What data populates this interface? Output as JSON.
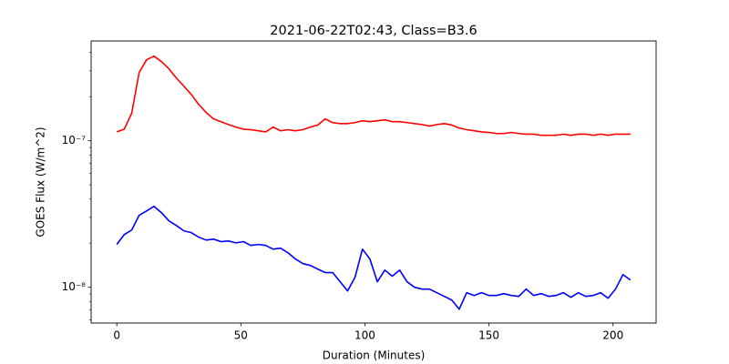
{
  "chart_data": {
    "type": "line",
    "title": "2021-06-22T02:43, Class=B3.6",
    "x_label": "Duration (Minutes)",
    "y_label": "GOES Flux (W/m^2)",
    "y_scale": "log",
    "grid": false,
    "xlim": [
      -10.35,
      217.35
    ],
    "ylim": [
      5.7e-09,
      4.8e-07
    ],
    "xticks": [
      0,
      50,
      100,
      150,
      200
    ],
    "yticks": [
      {
        "value": 1e-08,
        "label": "10⁻⁸"
      },
      {
        "value": 1e-07,
        "label": "10⁻⁷"
      }
    ],
    "yminorticks": [
      6e-09,
      7e-09,
      8e-09,
      9e-09,
      2e-08,
      3e-08,
      4e-08,
      5e-08,
      6e-08,
      7e-08,
      8e-08,
      9e-08,
      2e-07,
      3e-07,
      4e-07
    ],
    "x": [
      0,
      3,
      6,
      9,
      12,
      15,
      18,
      21,
      24,
      27,
      30,
      33,
      36,
      39,
      42,
      45,
      48,
      51,
      54,
      57,
      60,
      63,
      66,
      69,
      72,
      75,
      78,
      81,
      84,
      87,
      90,
      93,
      96,
      99,
      102,
      105,
      108,
      111,
      114,
      117,
      120,
      123,
      126,
      129,
      132,
      135,
      138,
      141,
      144,
      147,
      150,
      153,
      156,
      159,
      162,
      165,
      168,
      171,
      174,
      177,
      180,
      183,
      186,
      189,
      192,
      195,
      198,
      201,
      204,
      207
    ],
    "series": [
      {
        "color": "#ff0000",
        "values": [
          1.15e-07,
          1.2e-07,
          1.54e-07,
          2.92e-07,
          3.57e-07,
          3.78e-07,
          3.47e-07,
          3.1e-07,
          2.68e-07,
          2.36e-07,
          2.07e-07,
          1.77e-07,
          1.56e-07,
          1.41e-07,
          1.35e-07,
          1.29e-07,
          1.24e-07,
          1.2e-07,
          1.19e-07,
          1.17e-07,
          1.15e-07,
          1.24e-07,
          1.17e-07,
          1.19e-07,
          1.17e-07,
          1.19e-07,
          1.24e-07,
          1.28e-07,
          1.41e-07,
          1.33e-07,
          1.31e-07,
          1.31e-07,
          1.33e-07,
          1.37e-07,
          1.35e-07,
          1.37e-07,
          1.39e-07,
          1.35e-07,
          1.35e-07,
          1.33e-07,
          1.31e-07,
          1.29e-07,
          1.26e-07,
          1.29e-07,
          1.31e-07,
          1.28e-07,
          1.22e-07,
          1.19e-07,
          1.17e-07,
          1.15e-07,
          1.14e-07,
          1.12e-07,
          1.12e-07,
          1.14e-07,
          1.12e-07,
          1.11e-07,
          1.11e-07,
          1.09e-07,
          1.09e-07,
          1.09e-07,
          1.11e-07,
          1.09e-07,
          1.11e-07,
          1.11e-07,
          1.09e-07,
          1.11e-07,
          1.09e-07,
          1.11e-07,
          1.11e-07,
          1.11e-07
        ]
      },
      {
        "color": "#0000ff",
        "values": [
          1.96e-08,
          2.29e-08,
          2.46e-08,
          3.1e-08,
          3.32e-08,
          3.57e-08,
          3.23e-08,
          2.84e-08,
          2.64e-08,
          2.43e-08,
          2.36e-08,
          2.2e-08,
          2.1e-08,
          2.13e-08,
          2.05e-08,
          2.07e-08,
          2.01e-08,
          2.05e-08,
          1.93e-08,
          1.96e-08,
          1.93e-08,
          1.82e-08,
          1.85e-08,
          1.72e-08,
          1.56e-08,
          1.45e-08,
          1.41e-08,
          1.33e-08,
          1.26e-08,
          1.26e-08,
          1.09e-08,
          9.44e-09,
          1.17e-08,
          1.82e-08,
          1.56e-08,
          1.09e-08,
          1.31e-08,
          1.19e-08,
          1.31e-08,
          1.09e-08,
          1e-08,
          9.72e-09,
          9.72e-09,
          9.18e-09,
          8.67e-09,
          8.18e-09,
          7.09e-09,
          9.18e-09,
          8.79e-09,
          9.18e-09,
          8.79e-09,
          8.79e-09,
          9.05e-09,
          8.79e-09,
          8.67e-09,
          9.72e-09,
          8.79e-09,
          9.05e-09,
          8.67e-09,
          8.79e-09,
          9.18e-09,
          8.55e-09,
          9.18e-09,
          8.67e-09,
          8.79e-09,
          9.18e-09,
          8.42e-09,
          9.72e-09,
          1.22e-08,
          1.12e-08
        ]
      }
    ]
  }
}
